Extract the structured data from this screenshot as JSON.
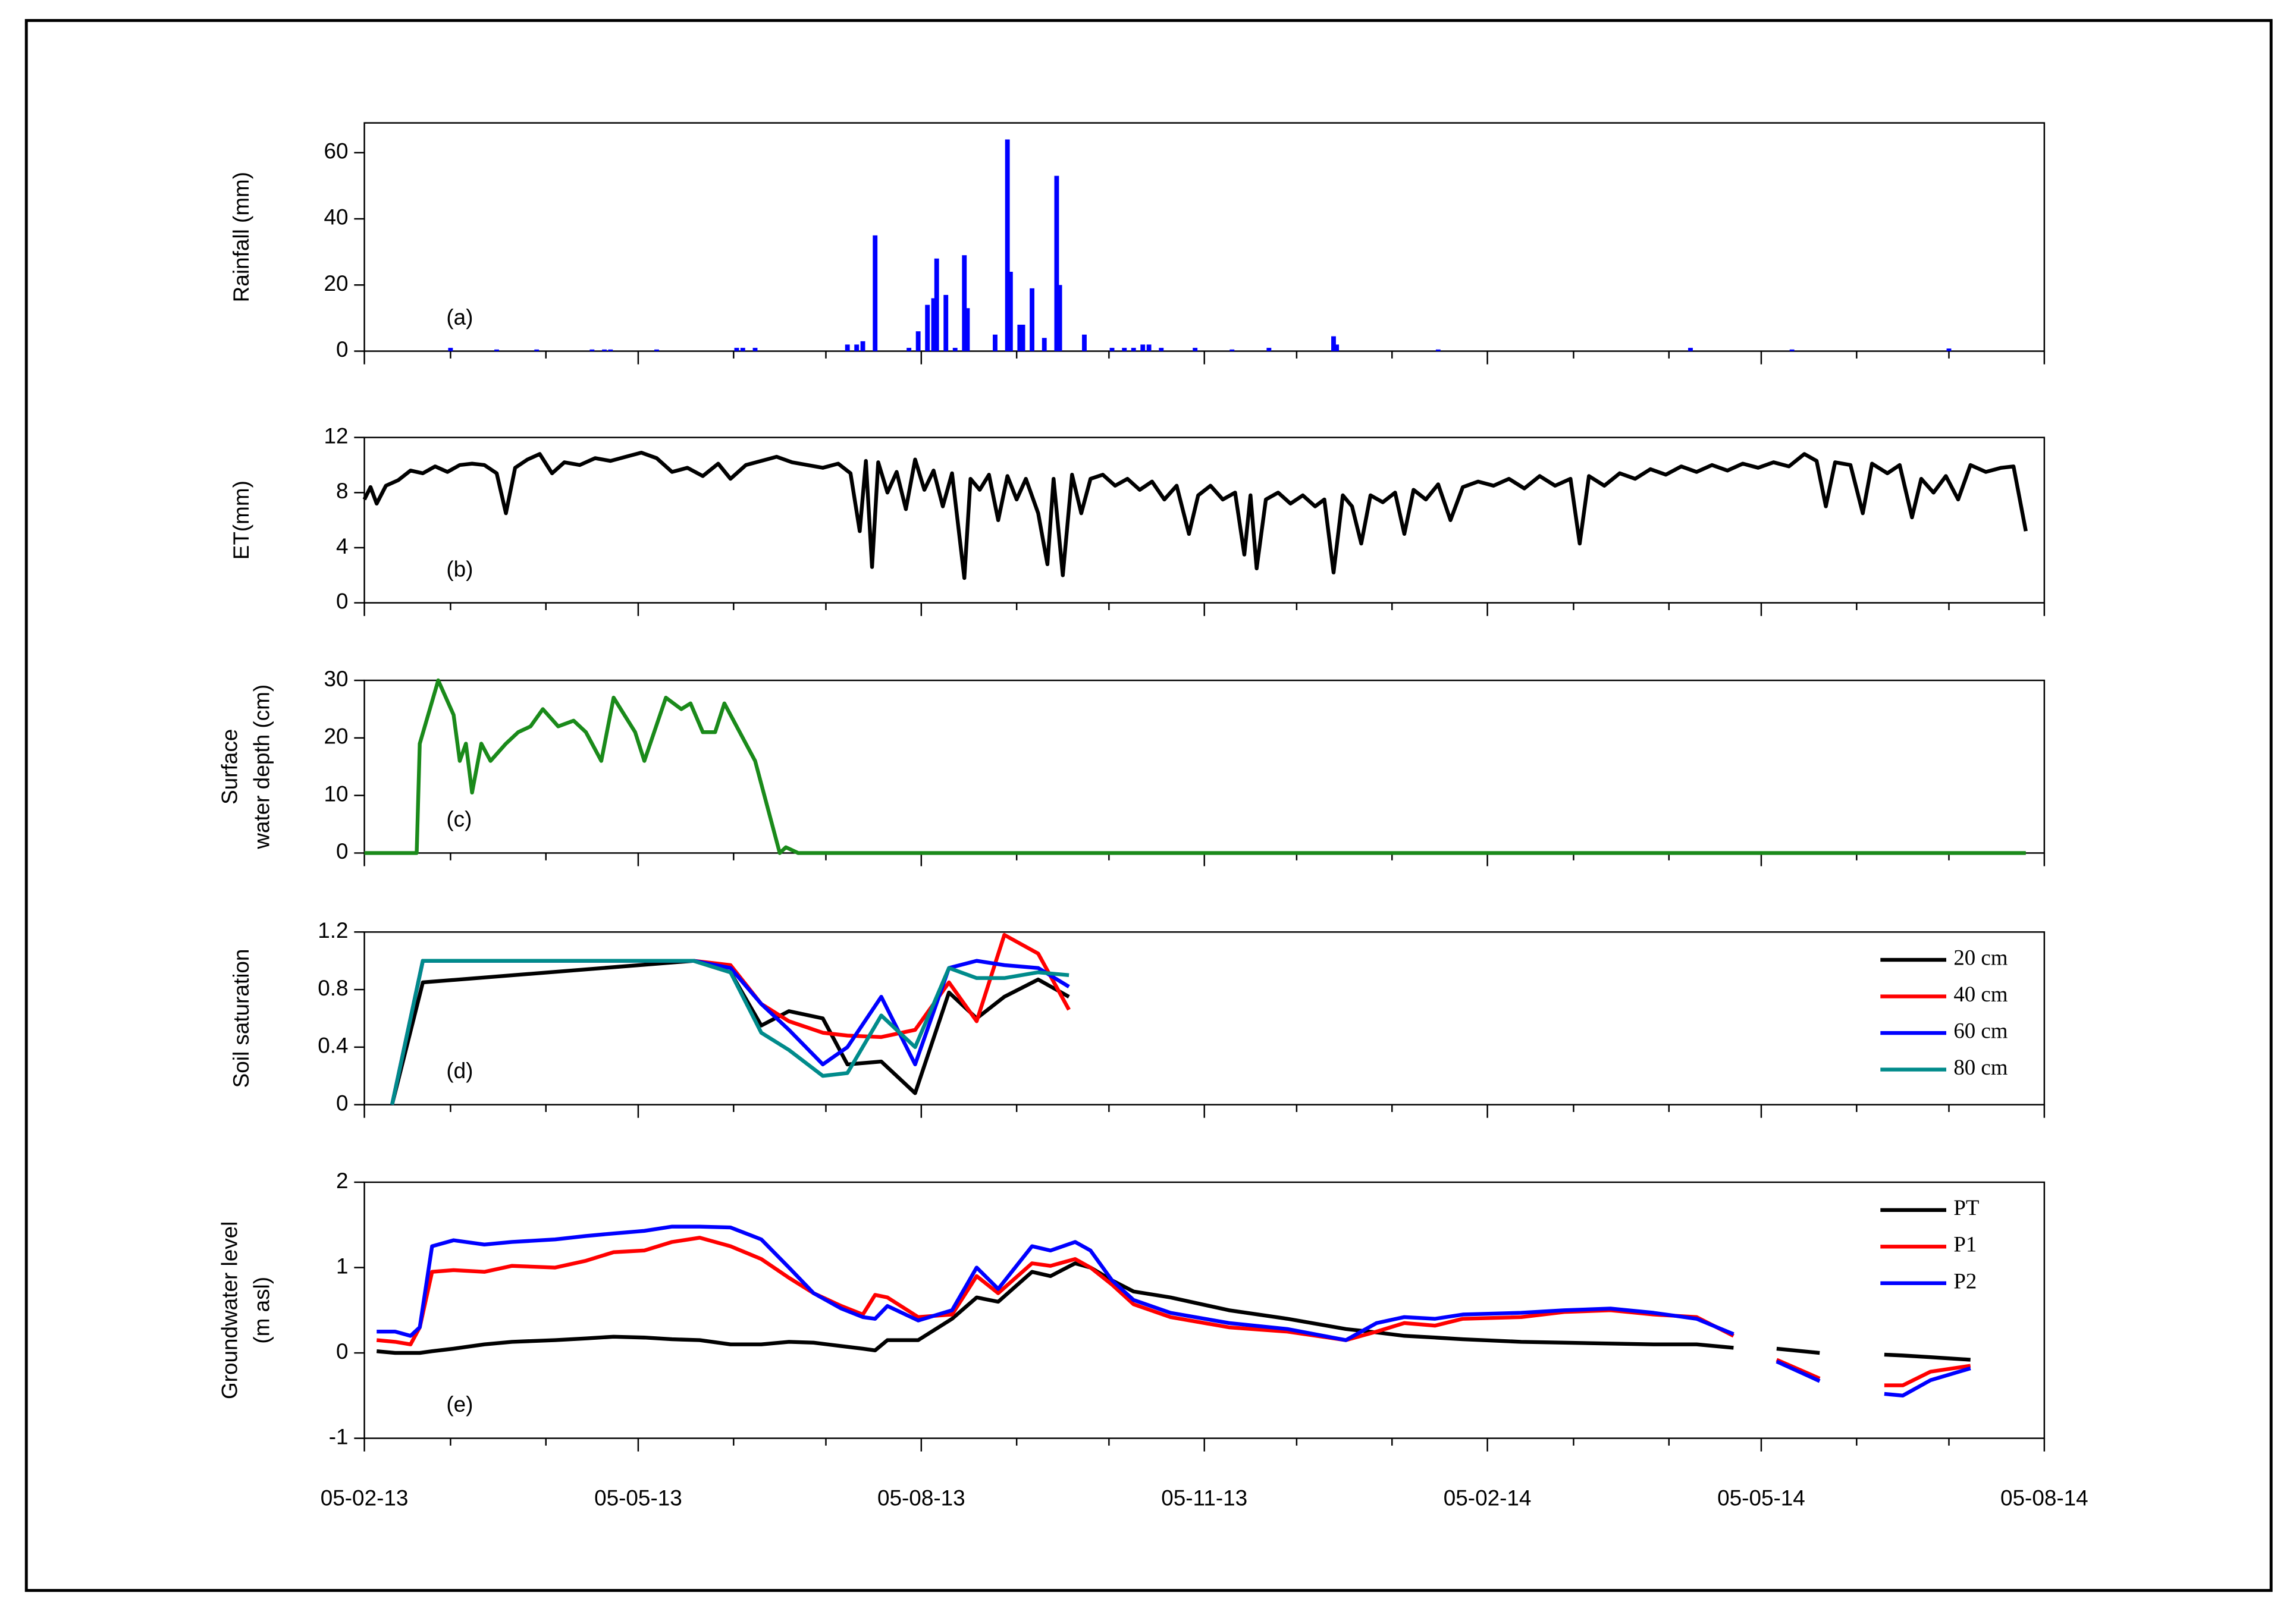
{
  "chart_data": [
    {
      "type": "bar",
      "ylabel": "Rainfall (mm)",
      "panel_label": "(a)",
      "color": "#0000ff",
      "ylim": [
        0,
        69
      ],
      "yticks": [
        0,
        20,
        40,
        60
      ],
      "x": [
        "2013-03-05",
        "2013-03-20",
        "2013-04-02",
        "2013-04-20",
        "2013-04-24",
        "2013-04-26",
        "2013-05-11",
        "2013-06-06",
        "2013-06-08",
        "2013-06-12",
        "2013-07-12",
        "2013-07-15",
        "2013-07-17",
        "2013-07-21",
        "2013-08-01",
        "2013-08-04",
        "2013-08-07",
        "2013-08-09",
        "2013-08-10",
        "2013-08-13",
        "2013-08-16",
        "2013-08-19",
        "2013-08-20",
        "2013-08-29",
        "2013-09-02",
        "2013-09-03",
        "2013-09-06",
        "2013-09-07",
        "2013-09-10",
        "2013-09-14",
        "2013-09-18",
        "2013-09-19",
        "2013-09-27",
        "2013-10-06",
        "2013-10-10",
        "2013-10-13",
        "2013-10-16",
        "2013-10-18",
        "2013-10-22",
        "2013-11-02",
        "2013-11-14",
        "2013-11-26",
        "2013-12-17",
        "2013-12-18",
        "2014-01-20",
        "2014-04-12",
        "2014-05-15",
        "2014-07-05"
      ],
      "values": [
        1,
        0.5,
        0.5,
        0.5,
        0.5,
        0.5,
        0.5,
        1,
        1,
        1,
        2,
        2,
        3,
        35,
        1,
        6,
        14,
        16,
        28,
        17,
        1,
        29,
        13,
        5,
        64,
        24,
        8,
        8,
        19,
        4,
        53,
        20,
        5,
        1,
        1,
        1,
        2,
        2,
        1,
        1,
        0.5,
        1,
        4.5,
        2,
        0.5,
        1,
        0.5,
        0.8
      ]
    },
    {
      "type": "line",
      "ylabel": "ET(mm)",
      "panel_label": "(b)",
      "color": "#000000",
      "ylim": [
        0,
        12
      ],
      "yticks": [
        0,
        4,
        8,
        12
      ],
      "x": [
        "2013-02-05",
        "2013-02-07",
        "2013-02-09",
        "2013-02-12",
        "2013-02-16",
        "2013-02-20",
        "2013-02-24",
        "2013-02-28",
        "2013-03-04",
        "2013-03-08",
        "2013-03-12",
        "2013-03-16",
        "2013-03-20",
        "2013-03-23",
        "2013-03-26",
        "2013-03-30",
        "2013-04-03",
        "2013-04-07",
        "2013-04-11",
        "2013-04-16",
        "2013-04-21",
        "2013-04-26",
        "2013-05-01",
        "2013-05-06",
        "2013-05-11",
        "2013-05-16",
        "2013-05-21",
        "2013-05-26",
        "2013-05-31",
        "2013-06-04",
        "2013-06-09",
        "2013-06-14",
        "2013-06-19",
        "2013-06-24",
        "2013-06-29",
        "2013-07-04",
        "2013-07-09",
        "2013-07-13",
        "2013-07-16",
        "2013-07-18",
        "2013-07-20",
        "2013-07-22",
        "2013-07-25",
        "2013-07-28",
        "2013-07-31",
        "2013-08-03",
        "2013-08-06",
        "2013-08-09",
        "2013-08-12",
        "2013-08-15",
        "2013-08-19",
        "2013-08-21",
        "2013-08-24",
        "2013-08-27",
        "2013-08-30",
        "2013-09-02",
        "2013-09-05",
        "2013-09-08",
        "2013-09-12",
        "2013-09-15",
        "2013-09-17",
        "2013-09-20",
        "2013-09-23",
        "2013-09-26",
        "2013-09-29",
        "2013-10-03",
        "2013-10-07",
        "2013-10-11",
        "2013-10-15",
        "2013-10-19",
        "2013-10-23",
        "2013-10-27",
        "2013-10-31",
        "2013-11-03",
        "2013-11-07",
        "2013-11-11",
        "2013-11-15",
        "2013-11-18",
        "2013-11-20",
        "2013-11-22",
        "2013-11-25",
        "2013-11-29",
        "2013-12-03",
        "2013-12-07",
        "2013-12-11",
        "2013-12-14",
        "2013-12-17",
        "2013-12-20",
        "2013-12-23",
        "2013-12-26",
        "2013-12-29",
        "2014-01-02",
        "2014-01-06",
        "2014-01-09",
        "2014-01-12",
        "2014-01-16",
        "2014-01-20",
        "2014-01-24",
        "2014-01-28",
        "2014-02-02",
        "2014-02-07",
        "2014-02-12",
        "2014-02-17",
        "2014-02-22",
        "2014-02-27",
        "2014-03-04",
        "2014-03-07",
        "2014-03-10",
        "2014-03-15",
        "2014-03-20",
        "2014-03-25",
        "2014-03-30",
        "2014-04-04",
        "2014-04-09",
        "2014-04-14",
        "2014-04-19",
        "2014-04-24",
        "2014-04-29",
        "2014-05-04",
        "2014-05-09",
        "2014-05-14",
        "2014-05-19",
        "2014-05-23",
        "2014-05-26",
        "2014-05-29",
        "2014-06-03",
        "2014-06-07",
        "2014-06-10",
        "2014-06-15",
        "2014-06-19",
        "2014-06-23",
        "2014-06-26",
        "2014-06-30",
        "2014-07-04",
        "2014-07-08",
        "2014-07-12",
        "2014-07-17",
        "2014-07-22",
        "2014-07-26",
        "2014-07-30"
      ],
      "values": [
        7.5,
        8.4,
        7.2,
        8.5,
        8.9,
        9.6,
        9.4,
        9.9,
        9.5,
        10.0,
        10.1,
        10.0,
        9.4,
        6.5,
        9.8,
        10.4,
        10.8,
        9.4,
        10.2,
        10.0,
        10.5,
        10.3,
        10.6,
        10.9,
        10.5,
        9.5,
        9.8,
        9.2,
        10.1,
        9.0,
        10.0,
        10.3,
        10.6,
        10.2,
        10.0,
        9.8,
        10.1,
        9.4,
        5.2,
        10.3,
        2.6,
        10.2,
        8.0,
        9.5,
        6.8,
        10.4,
        8.2,
        9.6,
        7.0,
        9.4,
        1.8,
        9.0,
        8.2,
        9.3,
        6.0,
        9.2,
        7.5,
        9.0,
        6.5,
        2.8,
        9.0,
        2.0,
        9.3,
        6.5,
        9.0,
        9.3,
        8.5,
        9.0,
        8.2,
        8.8,
        7.5,
        8.5,
        5.0,
        7.8,
        8.5,
        7.5,
        8.0,
        3.5,
        7.8,
        2.5,
        7.5,
        8.0,
        7.2,
        7.8,
        7.0,
        7.5,
        2.2,
        7.8,
        7.0,
        4.3,
        7.8,
        7.3,
        8.0,
        5.0,
        8.2,
        7.5,
        8.6,
        6.0,
        8.4,
        8.8,
        8.5,
        9.0,
        8.3,
        9.2,
        8.5,
        9.0,
        4.3,
        9.2,
        8.5,
        9.4,
        9.0,
        9.7,
        9.3,
        9.9,
        9.5,
        10.0,
        9.6,
        10.1,
        9.8,
        10.2,
        9.9,
        10.8,
        10.3,
        7.0,
        10.2,
        10.0,
        6.5,
        10.1,
        9.4,
        10.0,
        6.2,
        9.0,
        8.0,
        9.2,
        7.5,
        10.0,
        9.5,
        9.8,
        9.9,
        5.2
      ]
    },
    {
      "type": "line",
      "ylabel": [
        "Surface",
        "water depth (cm)"
      ],
      "panel_label": "(c)",
      "color": "#1a8a1a",
      "ylim": [
        0,
        30
      ],
      "yticks": [
        0,
        10,
        20,
        30
      ],
      "x": [
        "2013-02-05",
        "2013-02-22",
        "2013-02-23",
        "2013-03-01",
        "2013-03-06",
        "2013-03-08",
        "2013-03-10",
        "2013-03-12",
        "2013-03-15",
        "2013-03-18",
        "2013-03-23",
        "2013-03-27",
        "2013-03-31",
        "2013-04-04",
        "2013-04-09",
        "2013-04-14",
        "2013-04-18",
        "2013-04-23",
        "2013-04-27",
        "2013-05-04",
        "2013-05-07",
        "2013-05-14",
        "2013-05-19",
        "2013-05-22",
        "2013-05-26",
        "2013-05-30",
        "2013-06-02",
        "2013-06-07",
        "2013-06-12",
        "2013-06-16",
        "2013-06-20",
        "2013-06-22",
        "2013-06-26",
        "2014-07-30"
      ],
      "values": [
        0,
        0,
        19,
        30,
        24,
        16,
        19,
        10.5,
        19,
        16,
        19,
        21,
        22,
        25,
        22,
        23,
        21,
        16,
        27,
        21,
        16,
        27,
        25,
        26,
        21,
        21,
        26,
        21,
        16,
        8,
        0,
        1,
        0,
        0
      ]
    },
    {
      "type": "line",
      "ylabel": "Soil saturation",
      "panel_label": "(d)",
      "legend": "upper right",
      "ylim": [
        0,
        1.2
      ],
      "yticks": [
        0,
        0.4,
        0.8,
        1.2
      ],
      "x": [
        "2013-02-14",
        "2013-02-24",
        "2013-05-23",
        "2013-06-04",
        "2013-06-14",
        "2013-06-23",
        "2013-07-04",
        "2013-07-12",
        "2013-07-23",
        "2013-08-03",
        "2013-08-14",
        "2013-08-23",
        "2013-09-01",
        "2013-09-12",
        "2013-09-22"
      ],
      "series": [
        {
          "name": "20 cm",
          "color": "#000000",
          "values": [
            0,
            0.85,
            1.0,
            0.92,
            0.55,
            0.65,
            0.6,
            0.28,
            0.3,
            0.08,
            0.78,
            0.6,
            0.75,
            0.87,
            0.75
          ]
        },
        {
          "name": "40 cm",
          "color": "#ff0000",
          "values": [
            0,
            1.0,
            1.0,
            0.97,
            0.7,
            0.58,
            0.5,
            0.48,
            0.47,
            0.52,
            0.85,
            0.58,
            1.18,
            1.05,
            0.66
          ]
        },
        {
          "name": "60 cm",
          "color": "#0000ff",
          "values": [
            0,
            1.0,
            1.0,
            0.95,
            0.7,
            0.52,
            0.28,
            0.4,
            0.75,
            0.28,
            0.95,
            1.0,
            0.97,
            0.95,
            0.82
          ]
        },
        {
          "name": "80 cm",
          "color": "#008b8b",
          "values": [
            0,
            1.0,
            1.0,
            0.92,
            0.5,
            0.38,
            0.2,
            0.22,
            0.62,
            0.4,
            0.95,
            0.88,
            0.88,
            0.92,
            0.9
          ]
        }
      ]
    },
    {
      "type": "line",
      "ylabel": [
        "Groundwater level",
        "(m asl)"
      ],
      "panel_label": "(e)",
      "legend": "upper right",
      "ylim": [
        -1,
        2
      ],
      "yticks": [
        -1,
        0,
        1,
        2
      ],
      "xlim": [
        "2013-02-05",
        "2014-08-05"
      ],
      "xticks": [
        {
          "value": "2013-02-05",
          "label": "05-02-13"
        },
        {
          "value": "2013-05-05",
          "label": "05-05-13"
        },
        {
          "value": "2013-08-05",
          "label": "05-08-13"
        },
        {
          "value": "2013-11-05",
          "label": "05-11-13"
        },
        {
          "value": "2014-02-05",
          "label": "05-02-14"
        },
        {
          "value": "2014-05-05",
          "label": "05-05-14"
        },
        {
          "value": "2014-08-05",
          "label": "05-08-14"
        }
      ],
      "xminorticks": [
        "2013-03-05",
        "2013-04-05",
        "2013-06-05",
        "2013-07-05",
        "2013-09-05",
        "2013-10-05",
        "2013-12-05",
        "2014-01-05",
        "2014-03-05",
        "2014-04-05",
        "2014-06-05",
        "2014-07-05"
      ],
      "x": [
        "2013-02-09",
        "2013-02-15",
        "2013-02-20",
        "2013-02-23",
        "2013-02-27",
        "2013-03-06",
        "2013-03-16",
        "2013-03-25",
        "2013-04-08",
        "2013-04-18",
        "2013-04-27",
        "2013-05-07",
        "2013-05-16",
        "2013-05-25",
        "2013-06-04",
        "2013-06-14",
        "2013-06-23",
        "2013-07-01",
        "2013-07-10",
        "2013-07-17",
        "2013-07-21",
        "2013-07-25",
        "2013-08-04",
        "2013-08-15",
        "2013-08-23",
        "2013-08-30",
        "2013-09-10",
        "2013-09-16",
        "2013-09-24",
        "2013-09-29",
        "2013-10-06",
        "2013-10-13",
        "2013-10-25",
        "2013-11-13",
        "2013-12-02",
        "2013-12-21",
        "2013-12-31",
        "2014-01-09",
        "2014-01-19",
        "2014-01-28",
        "2014-02-16",
        "2014-03-02",
        "2014-03-17",
        "2014-03-31",
        "2014-04-14",
        "2014-04-26",
        "2014-05-03",
        "2014-05-10",
        "2014-05-24",
        "2014-06-03",
        "2014-06-14",
        "2014-06-20",
        "2014-06-29",
        "2014-07-12"
      ],
      "series": [
        {
          "name": "PT",
          "color": "#000000",
          "values": [
            0.02,
            0.0,
            0.0,
            0.0,
            0.02,
            0.05,
            0.1,
            0.13,
            0.15,
            0.17,
            0.19,
            0.18,
            0.16,
            0.15,
            0.1,
            0.1,
            0.13,
            0.12,
            0.08,
            0.05,
            0.03,
            0.15,
            0.15,
            0.4,
            0.65,
            0.6,
            0.95,
            0.9,
            1.05,
            1.0,
            0.85,
            0.72,
            0.65,
            0.5,
            0.4,
            0.28,
            0.24,
            0.2,
            0.18,
            0.16,
            0.13,
            0.12,
            0.11,
            0.1,
            0.1,
            0.06,
            null,
            0.05,
            0.0,
            null,
            -0.02,
            -0.03,
            -0.05,
            -0.08
          ]
        },
        {
          "name": "P1",
          "color": "#ff0000",
          "values": [
            0.15,
            0.13,
            0.1,
            0.3,
            0.95,
            0.97,
            0.95,
            1.02,
            1.0,
            1.08,
            1.18,
            1.2,
            1.3,
            1.35,
            1.25,
            1.1,
            0.88,
            0.7,
            0.55,
            0.45,
            0.68,
            0.65,
            0.42,
            0.45,
            0.9,
            0.7,
            1.05,
            1.02,
            1.1,
            1.0,
            0.8,
            0.57,
            0.42,
            0.3,
            0.25,
            0.15,
            0.25,
            0.35,
            0.32,
            0.4,
            0.42,
            0.48,
            0.5,
            0.45,
            0.42,
            0.2,
            null,
            -0.08,
            -0.3,
            null,
            -0.38,
            -0.38,
            -0.22,
            -0.15
          ]
        },
        {
          "name": "P2",
          "color": "#0000ff",
          "values": [
            0.25,
            0.25,
            0.2,
            0.3,
            1.25,
            1.32,
            1.27,
            1.3,
            1.33,
            1.37,
            1.4,
            1.43,
            1.48,
            1.48,
            1.47,
            1.33,
            1.0,
            0.7,
            0.52,
            0.42,
            0.4,
            0.55,
            0.38,
            0.5,
            1.0,
            0.75,
            1.25,
            1.2,
            1.3,
            1.2,
            0.85,
            0.62,
            0.47,
            0.35,
            0.28,
            0.15,
            0.35,
            0.42,
            0.4,
            0.45,
            0.47,
            0.5,
            0.52,
            0.47,
            0.4,
            0.22,
            null,
            -0.1,
            -0.33,
            null,
            -0.48,
            -0.5,
            -0.32,
            -0.18
          ]
        }
      ]
    }
  ]
}
